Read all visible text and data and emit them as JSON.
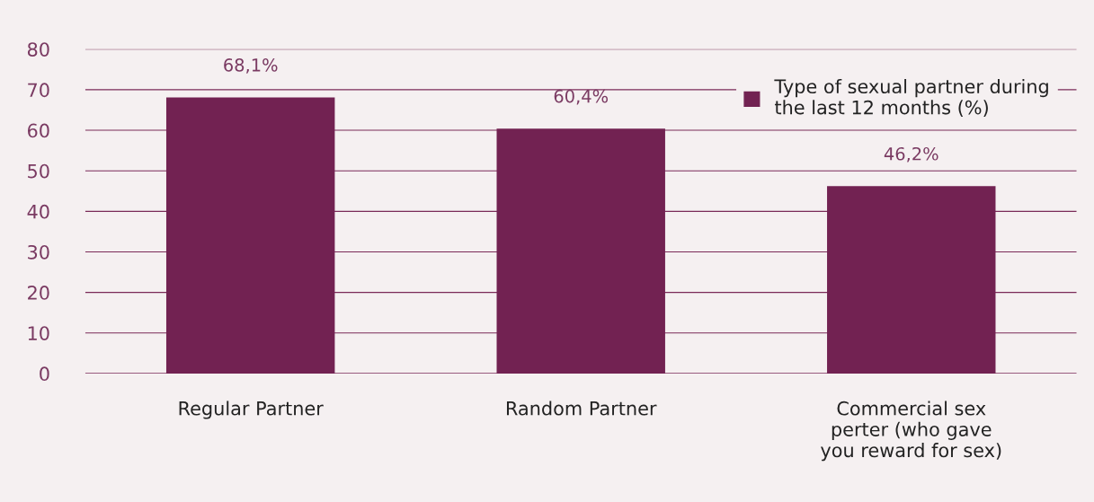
{
  "chart_data": {
    "type": "bar",
    "categories": [
      "Regular Partner",
      "Random Partner",
      "Commercial sex\nperter (who gave\nyou reward for sex)"
    ],
    "series": [
      {
        "name": "Type of sexual partner during\nthe last 12 months (%)",
        "color": "#722252",
        "values": [
          68.1,
          60.4,
          46.2
        ],
        "value_labels": [
          "68,1%",
          "60,4%",
          "46,2%"
        ]
      }
    ],
    "ylim": [
      0,
      80
    ],
    "yticks": [
      0,
      10,
      20,
      30,
      40,
      50,
      60,
      70,
      80
    ],
    "grid": "y",
    "legend": "top right"
  }
}
